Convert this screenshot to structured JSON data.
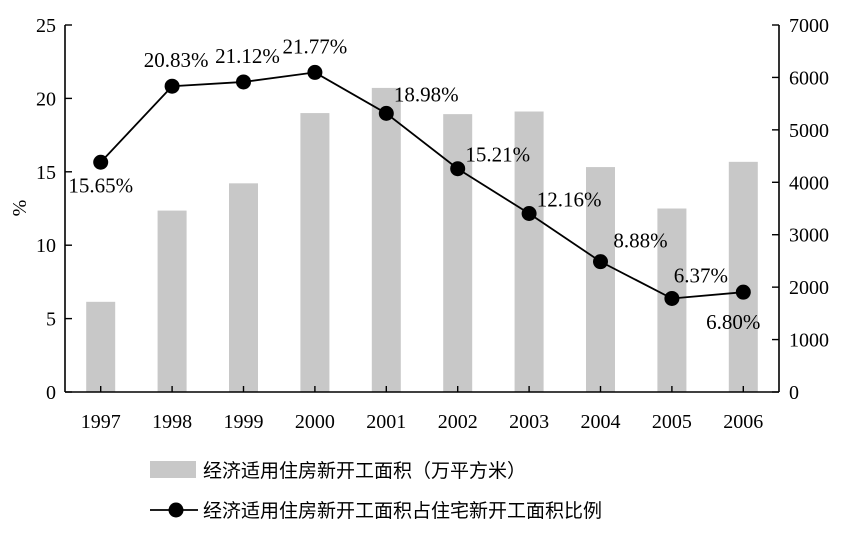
{
  "chart_data": {
    "type": "bar+line",
    "categories": [
      "1997",
      "1998",
      "1999",
      "2000",
      "2001",
      "2002",
      "2003",
      "2004",
      "2005",
      "2006"
    ],
    "bar_series": {
      "name": "经济适用住房新开工面积（万平方米）",
      "axis": "right",
      "values": [
        1720,
        3460,
        3980,
        5320,
        5800,
        5300,
        5350,
        4290,
        3500,
        4390
      ],
      "color": "#c8c8c8"
    },
    "line_series": {
      "name": "经济适用住房新开工面积占住宅新开工面积比例",
      "axis": "left",
      "values": [
        15.65,
        20.83,
        21.12,
        21.77,
        18.98,
        15.21,
        12.16,
        8.88,
        6.37,
        6.8
      ],
      "labels": [
        "15.65%",
        "20.83%",
        "21.12%",
        "21.77%",
        "18.98%",
        "15.21%",
        "12.16%",
        "8.88%",
        "6.37%",
        "6.80%"
      ],
      "color": "#000000"
    },
    "left_axis": {
      "label": "%",
      "ylim": [
        0,
        25
      ],
      "ticks": [
        "0",
        "5",
        "10",
        "15",
        "20",
        "25"
      ]
    },
    "right_axis": {
      "label": "",
      "ylim": [
        0,
        7000
      ],
      "ticks": [
        "0",
        "1000",
        "2000",
        "3000",
        "4000",
        "5000",
        "6000",
        "7000"
      ]
    },
    "grid": false,
    "legend_placement": "bottom"
  }
}
